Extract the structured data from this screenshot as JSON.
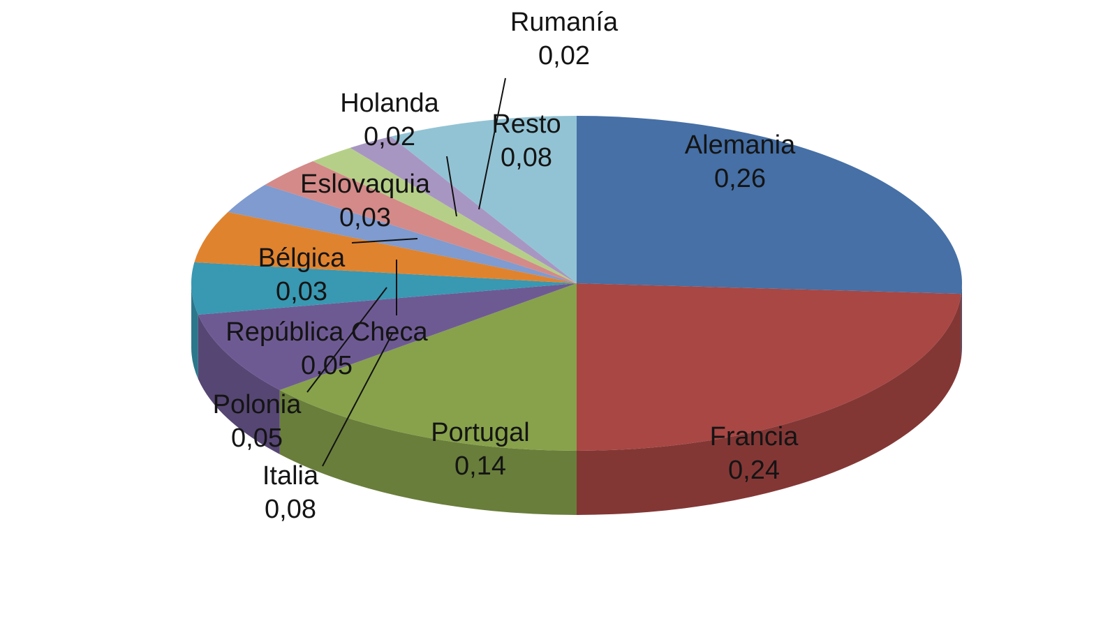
{
  "chart_data": {
    "type": "pie",
    "style": "3d",
    "title": "",
    "slices": [
      {
        "label": "Alemania",
        "value": "0,26",
        "color": "#4670a6"
      },
      {
        "label": "Francia",
        "value": "0,24",
        "color": "#a84744"
      },
      {
        "label": "Portugal",
        "value": "0,14",
        "color": "#87a24b"
      },
      {
        "label": "Italia",
        "value": "0,08",
        "color": "#6e5a93"
      },
      {
        "label": "Polonia",
        "value": "0,05",
        "color": "#3998b2"
      },
      {
        "label": "República Checa",
        "value": "0,05",
        "color": "#e0832f"
      },
      {
        "label": "Bélgica",
        "value": "0,03",
        "color": "#7f9bcf"
      },
      {
        "label": "Eslovaquia",
        "value": "0,03",
        "color": "#d48a88"
      },
      {
        "label": "Holanda",
        "value": "0,02",
        "color": "#b6cf88"
      },
      {
        "label": "Rumanía",
        "value": "0,02",
        "color": "#a896c2"
      },
      {
        "label": "Resto",
        "value": "0,08",
        "color": "#92c3d4"
      }
    ],
    "legend": "none",
    "data_labels": "category and value"
  }
}
